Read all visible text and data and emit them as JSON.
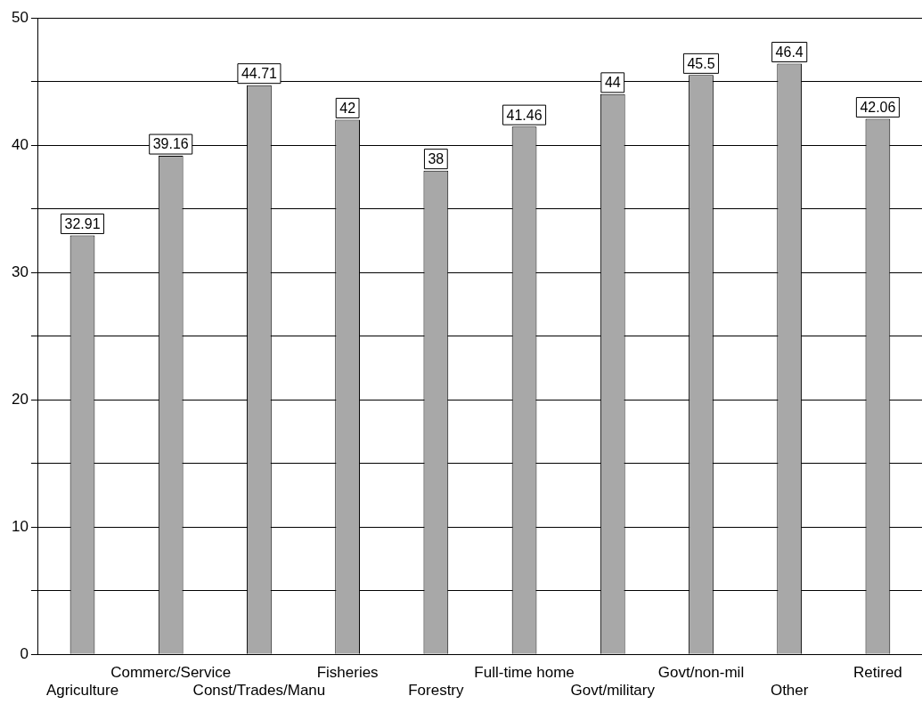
{
  "chart_data": {
    "type": "bar",
    "categories": [
      "Agriculture",
      "Commerc/Service",
      "Const/Trades/Manu",
      "Fisheries",
      "Forestry",
      "Full-time home",
      "Govt/military",
      "Govt/non-mil",
      "Other",
      "Retired"
    ],
    "values": [
      32.91,
      39.16,
      44.71,
      42,
      38,
      41.46,
      44,
      45.5,
      46.4,
      42.06
    ],
    "color": "#a8a8a8",
    "ylim": [
      0,
      50
    ],
    "yticks": [
      0,
      {
        "value": 5,
        "label": null
      },
      10,
      {
        "value": 15,
        "label": null
      },
      20,
      {
        "value": 25,
        "label": null
      },
      30,
      {
        "value": 35,
        "label": null
      },
      40,
      {
        "value": 45,
        "label": null
      },
      50
    ],
    "grid": "y",
    "legend": false,
    "data_labels": true
  }
}
